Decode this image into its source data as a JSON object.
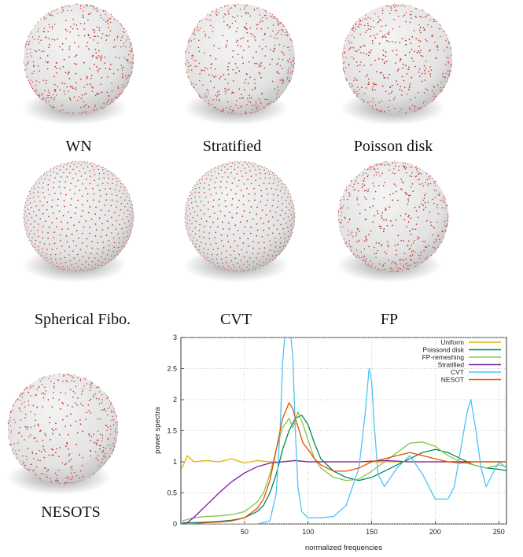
{
  "panels": [
    {
      "id": "wn",
      "label": "WN",
      "distribution": "random"
    },
    {
      "id": "stratified",
      "label": "Stratified",
      "distribution": "jittered"
    },
    {
      "id": "poisson",
      "label": "Poisson disk",
      "distribution": "blue-noise"
    },
    {
      "id": "fibo",
      "label": "Spherical Fibo.",
      "distribution": "fibonacci"
    },
    {
      "id": "cvt",
      "label": "CVT",
      "distribution": "lattice"
    },
    {
      "id": "fp",
      "label": "FP",
      "distribution": "blue-noise"
    },
    {
      "id": "nesots",
      "label": "NESOTS",
      "distribution": "blue-noise"
    }
  ],
  "colors": {
    "sphere_light": "#f4f4f4",
    "sphere_dark": "#b9b9b9",
    "shadow": "#8a8a8a",
    "point": "#c0392b"
  },
  "chart_data": {
    "type": "line",
    "xlabel": "normalized frequencies",
    "ylabel": "power spectra",
    "xlim": [
      0,
      256
    ],
    "ylim": [
      0,
      3
    ],
    "xticks": [
      50,
      100,
      150,
      200,
      250
    ],
    "yticks": [
      0,
      0.5,
      1,
      1.5,
      2,
      2.5,
      3
    ],
    "ytick_labels": [
      "0",
      "0.5",
      "1",
      "1.5",
      "2",
      "2.5",
      "3"
    ],
    "xtick_labels": [
      "50",
      "100",
      "150",
      "200",
      "250"
    ],
    "grid": true,
    "legend_position": "top-right",
    "series": [
      {
        "name": "Uniform",
        "color": "#e6b000",
        "x": [
          1,
          5,
          10,
          20,
          30,
          40,
          50,
          60,
          70,
          80,
          90,
          100,
          120,
          140,
          160,
          180,
          200,
          220,
          240,
          256
        ],
        "y": [
          0.9,
          1.1,
          1.0,
          1.02,
          1.0,
          1.05,
          0.98,
          1.02,
          1.0,
          1.0,
          1.02,
          1.0,
          1.0,
          1.0,
          1.0,
          1.0,
          1.0,
          1.0,
          1.0,
          1.0
        ]
      },
      {
        "name": "Poissond disk",
        "color": "#00875a",
        "x": [
          1,
          10,
          20,
          30,
          40,
          50,
          60,
          65,
          70,
          75,
          80,
          85,
          90,
          95,
          100,
          105,
          110,
          120,
          130,
          140,
          150,
          160,
          170,
          180,
          190,
          200,
          210,
          220,
          230,
          240,
          250,
          256
        ],
        "y": [
          0.02,
          0.02,
          0.03,
          0.04,
          0.06,
          0.1,
          0.2,
          0.3,
          0.5,
          0.8,
          1.2,
          1.5,
          1.7,
          1.75,
          1.6,
          1.3,
          1.05,
          0.85,
          0.75,
          0.7,
          0.75,
          0.85,
          0.95,
          1.05,
          1.15,
          1.2,
          1.15,
          1.05,
          0.95,
          0.9,
          0.88,
          0.86
        ]
      },
      {
        "name": "FP-remeshing",
        "color": "#8bc34a",
        "x": [
          1,
          10,
          20,
          30,
          40,
          50,
          60,
          65,
          70,
          75,
          80,
          85,
          88,
          92,
          96,
          100,
          105,
          110,
          120,
          130,
          140,
          150,
          160,
          170,
          180,
          190,
          200,
          210,
          220,
          230,
          240,
          250,
          256
        ],
        "y": [
          0.05,
          0.1,
          0.12,
          0.13,
          0.15,
          0.2,
          0.35,
          0.5,
          0.8,
          1.2,
          1.55,
          1.7,
          1.55,
          1.8,
          1.6,
          1.35,
          1.05,
          0.9,
          0.75,
          0.7,
          0.72,
          0.85,
          1.0,
          1.15,
          1.3,
          1.32,
          1.25,
          1.1,
          1.0,
          0.95,
          0.9,
          0.95,
          0.92
        ]
      },
      {
        "name": "Stratified",
        "color": "#7b1fa2",
        "x": [
          1,
          5,
          10,
          20,
          30,
          40,
          50,
          60,
          70,
          80,
          90,
          100,
          120,
          140,
          160,
          180,
          200,
          220,
          240,
          256
        ],
        "y": [
          0.0,
          0.02,
          0.1,
          0.3,
          0.5,
          0.68,
          0.82,
          0.92,
          0.98,
          1.0,
          1.02,
          1.0,
          1.0,
          1.0,
          1.02,
          1.0,
          1.0,
          1.0,
          1.0,
          1.0
        ]
      },
      {
        "name": "CVT",
        "color": "#4fc3f7",
        "x": [
          1,
          20,
          40,
          60,
          70,
          75,
          78,
          80,
          82,
          84,
          86,
          88,
          90,
          92,
          95,
          100,
          110,
          120,
          130,
          140,
          145,
          148,
          150,
          152,
          155,
          160,
          170,
          180,
          190,
          200,
          210,
          215,
          220,
          225,
          228,
          232,
          236,
          240,
          245,
          250,
          256
        ],
        "y": [
          0,
          0,
          0,
          0,
          0.05,
          0.5,
          1.5,
          2.6,
          3.1,
          3.2,
          3.1,
          2.7,
          1.5,
          0.6,
          0.2,
          0.1,
          0.1,
          0.12,
          0.3,
          0.9,
          1.8,
          2.5,
          2.3,
          1.6,
          0.8,
          0.6,
          0.9,
          1.1,
          0.8,
          0.4,
          0.4,
          0.6,
          1.2,
          1.8,
          2.0,
          1.5,
          0.9,
          0.6,
          0.8,
          1.0,
          0.9
        ]
      },
      {
        "name": "NESOT",
        "color": "#e65100",
        "x": [
          1,
          10,
          20,
          30,
          40,
          50,
          60,
          65,
          70,
          75,
          80,
          85,
          88,
          90,
          93,
          96,
          100,
          105,
          110,
          120,
          130,
          140,
          150,
          160,
          170,
          180,
          190,
          200,
          210,
          220,
          230,
          240,
          250,
          256
        ],
        "y": [
          0.0,
          0.0,
          0.02,
          0.03,
          0.05,
          0.1,
          0.25,
          0.4,
          0.7,
          1.2,
          1.7,
          1.95,
          1.85,
          1.7,
          1.5,
          1.3,
          1.2,
          1.05,
          0.95,
          0.85,
          0.85,
          0.9,
          1.0,
          1.05,
          1.1,
          1.15,
          1.1,
          1.05,
          1.0,
          0.98,
          1.0,
          1.0,
          1.0,
          1.0
        ]
      }
    ]
  }
}
